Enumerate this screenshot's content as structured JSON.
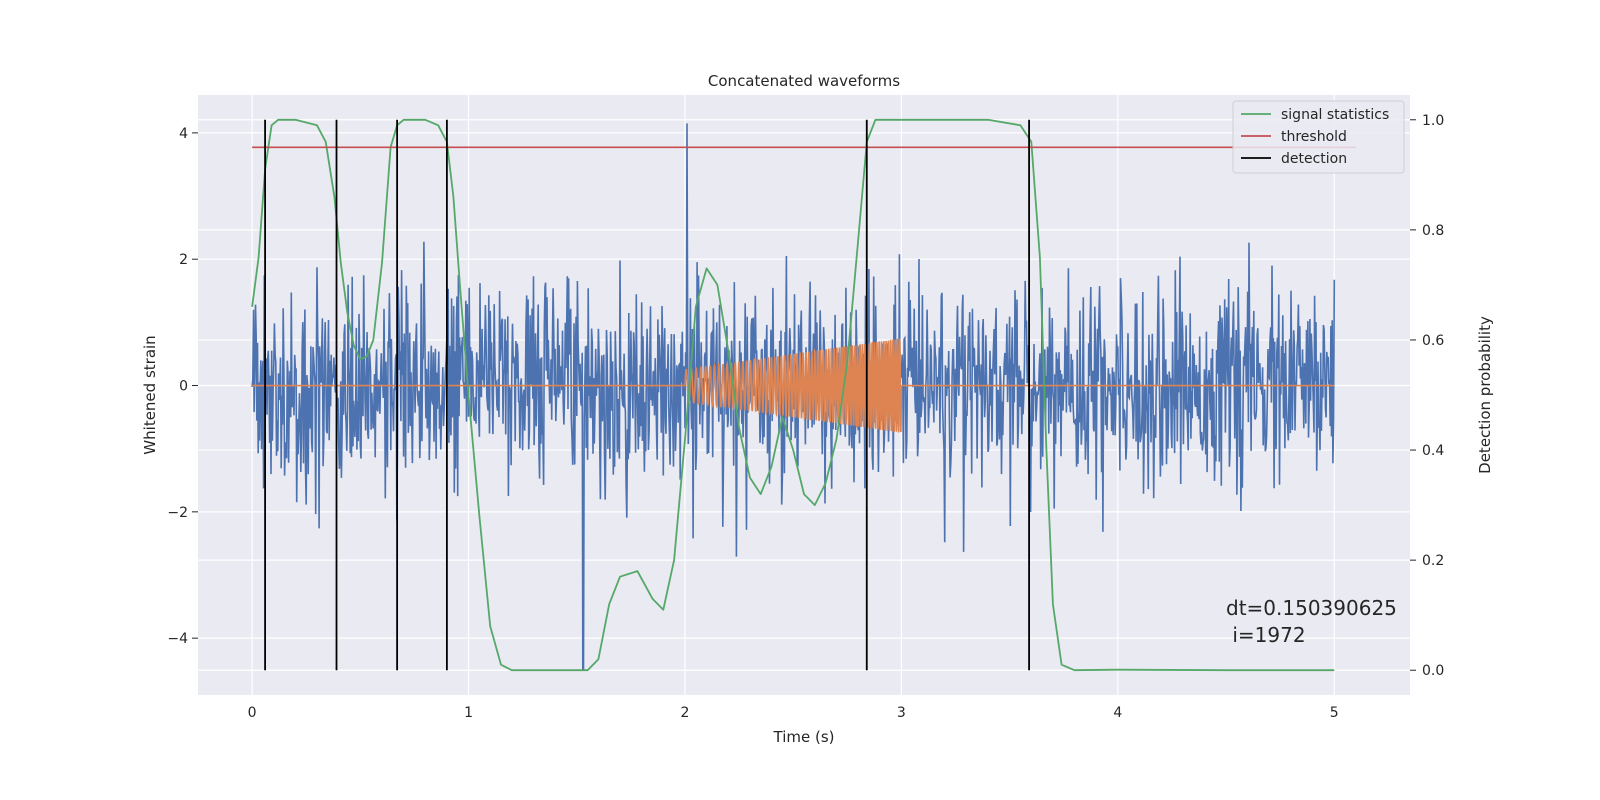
{
  "chart_data": {
    "type": "line",
    "title": "Concatenated waveforms",
    "xlabel": "Time (s)",
    "ylabel": "Whitened strain",
    "ylabel_right": "Detection probability",
    "xlim": [
      -0.25,
      5.35
    ],
    "ylim": [
      -4.9,
      4.6
    ],
    "ylim_right": [
      -0.045,
      1.045
    ],
    "x_ticks": [
      0,
      1,
      2,
      3,
      4,
      5
    ],
    "x_tick_labels": [
      "0",
      "1",
      "2",
      "3",
      "4",
      "5"
    ],
    "y_ticks": [
      -4,
      -2,
      0,
      2,
      4
    ],
    "y_tick_labels": [
      "−4",
      "−2",
      "0",
      "2",
      "4"
    ],
    "y_right_ticks": [
      0.0,
      0.2,
      0.4,
      0.6,
      0.8,
      1.0
    ],
    "y_right_tick_labels": [
      "0.0",
      "0.2",
      "0.4",
      "0.6",
      "0.8",
      "1.0"
    ],
    "grid": true,
    "legend_position": "top-right",
    "colors": {
      "strain": "#4c72b0",
      "injection": "#dd8452",
      "signal_statistics": "#55a868",
      "threshold": "#c44e52",
      "detection": "#000000",
      "plot_background": "#eaeaf2",
      "grid": "#ffffff"
    },
    "strain_noise": {
      "x_range": [
        0,
        5
      ],
      "sample_count": 1600,
      "std": 0.75,
      "spike_x": 2.01,
      "spike_y": 4.15,
      "min_y": -4.5
    },
    "injection": {
      "x_start": 2.0,
      "x_end": 3.0,
      "amplitude_start": 0.25,
      "amplitude_end": 0.75,
      "cycles": 70,
      "baseline": 0
    },
    "series": [
      {
        "name": "signal statistics",
        "axis": "right",
        "x": [
          0.0,
          0.03,
          0.06,
          0.09,
          0.12,
          0.15,
          0.2,
          0.3,
          0.34,
          0.38,
          0.41,
          0.44,
          0.47,
          0.5,
          0.53,
          0.56,
          0.6,
          0.64,
          0.67,
          0.7,
          0.74,
          0.8,
          0.86,
          0.9,
          0.93,
          0.96,
          1.0,
          1.05,
          1.1,
          1.15,
          1.2,
          1.3,
          1.4,
          1.5,
          1.55,
          1.6,
          1.65,
          1.7,
          1.78,
          1.85,
          1.9,
          1.95,
          2.0,
          2.05,
          2.1,
          2.15,
          2.2,
          2.25,
          2.3,
          2.35,
          2.4,
          2.45,
          2.5,
          2.55,
          2.6,
          2.65,
          2.7,
          2.75,
          2.8,
          2.84,
          2.88,
          2.92,
          3.0,
          3.2,
          3.4,
          3.55,
          3.6,
          3.64,
          3.67,
          3.7,
          3.74,
          3.8,
          4.0,
          4.5,
          5.0
        ],
        "y": [
          0.66,
          0.75,
          0.91,
          0.99,
          1.0,
          1.0,
          1.0,
          0.99,
          0.96,
          0.86,
          0.74,
          0.65,
          0.59,
          0.565,
          0.57,
          0.6,
          0.74,
          0.95,
          0.99,
          1.0,
          1.0,
          1.0,
          0.99,
          0.96,
          0.86,
          0.7,
          0.5,
          0.28,
          0.08,
          0.01,
          0.0,
          0.0,
          0.0,
          0.0,
          0.0,
          0.02,
          0.12,
          0.17,
          0.18,
          0.13,
          0.11,
          0.2,
          0.42,
          0.66,
          0.73,
          0.7,
          0.58,
          0.44,
          0.35,
          0.32,
          0.37,
          0.46,
          0.4,
          0.32,
          0.3,
          0.34,
          0.42,
          0.56,
          0.78,
          0.96,
          1.0,
          1.0,
          1.0,
          1.0,
          1.0,
          0.99,
          0.96,
          0.75,
          0.4,
          0.12,
          0.01,
          0.0,
          0.001,
          0.0,
          0.0
        ]
      },
      {
        "name": "threshold",
        "axis": "right",
        "x": [
          0,
          5.1
        ],
        "y": [
          0.95,
          0.95
        ]
      },
      {
        "name": "detection",
        "axis": "right",
        "x": [
          0.06,
          0.39,
          0.67,
          0.9,
          2.84,
          3.59
        ],
        "y_range": [
          0.0,
          1.0
        ]
      }
    ],
    "annotation_lines": [
      "dt=0.150390625",
      " i=1972"
    ]
  }
}
